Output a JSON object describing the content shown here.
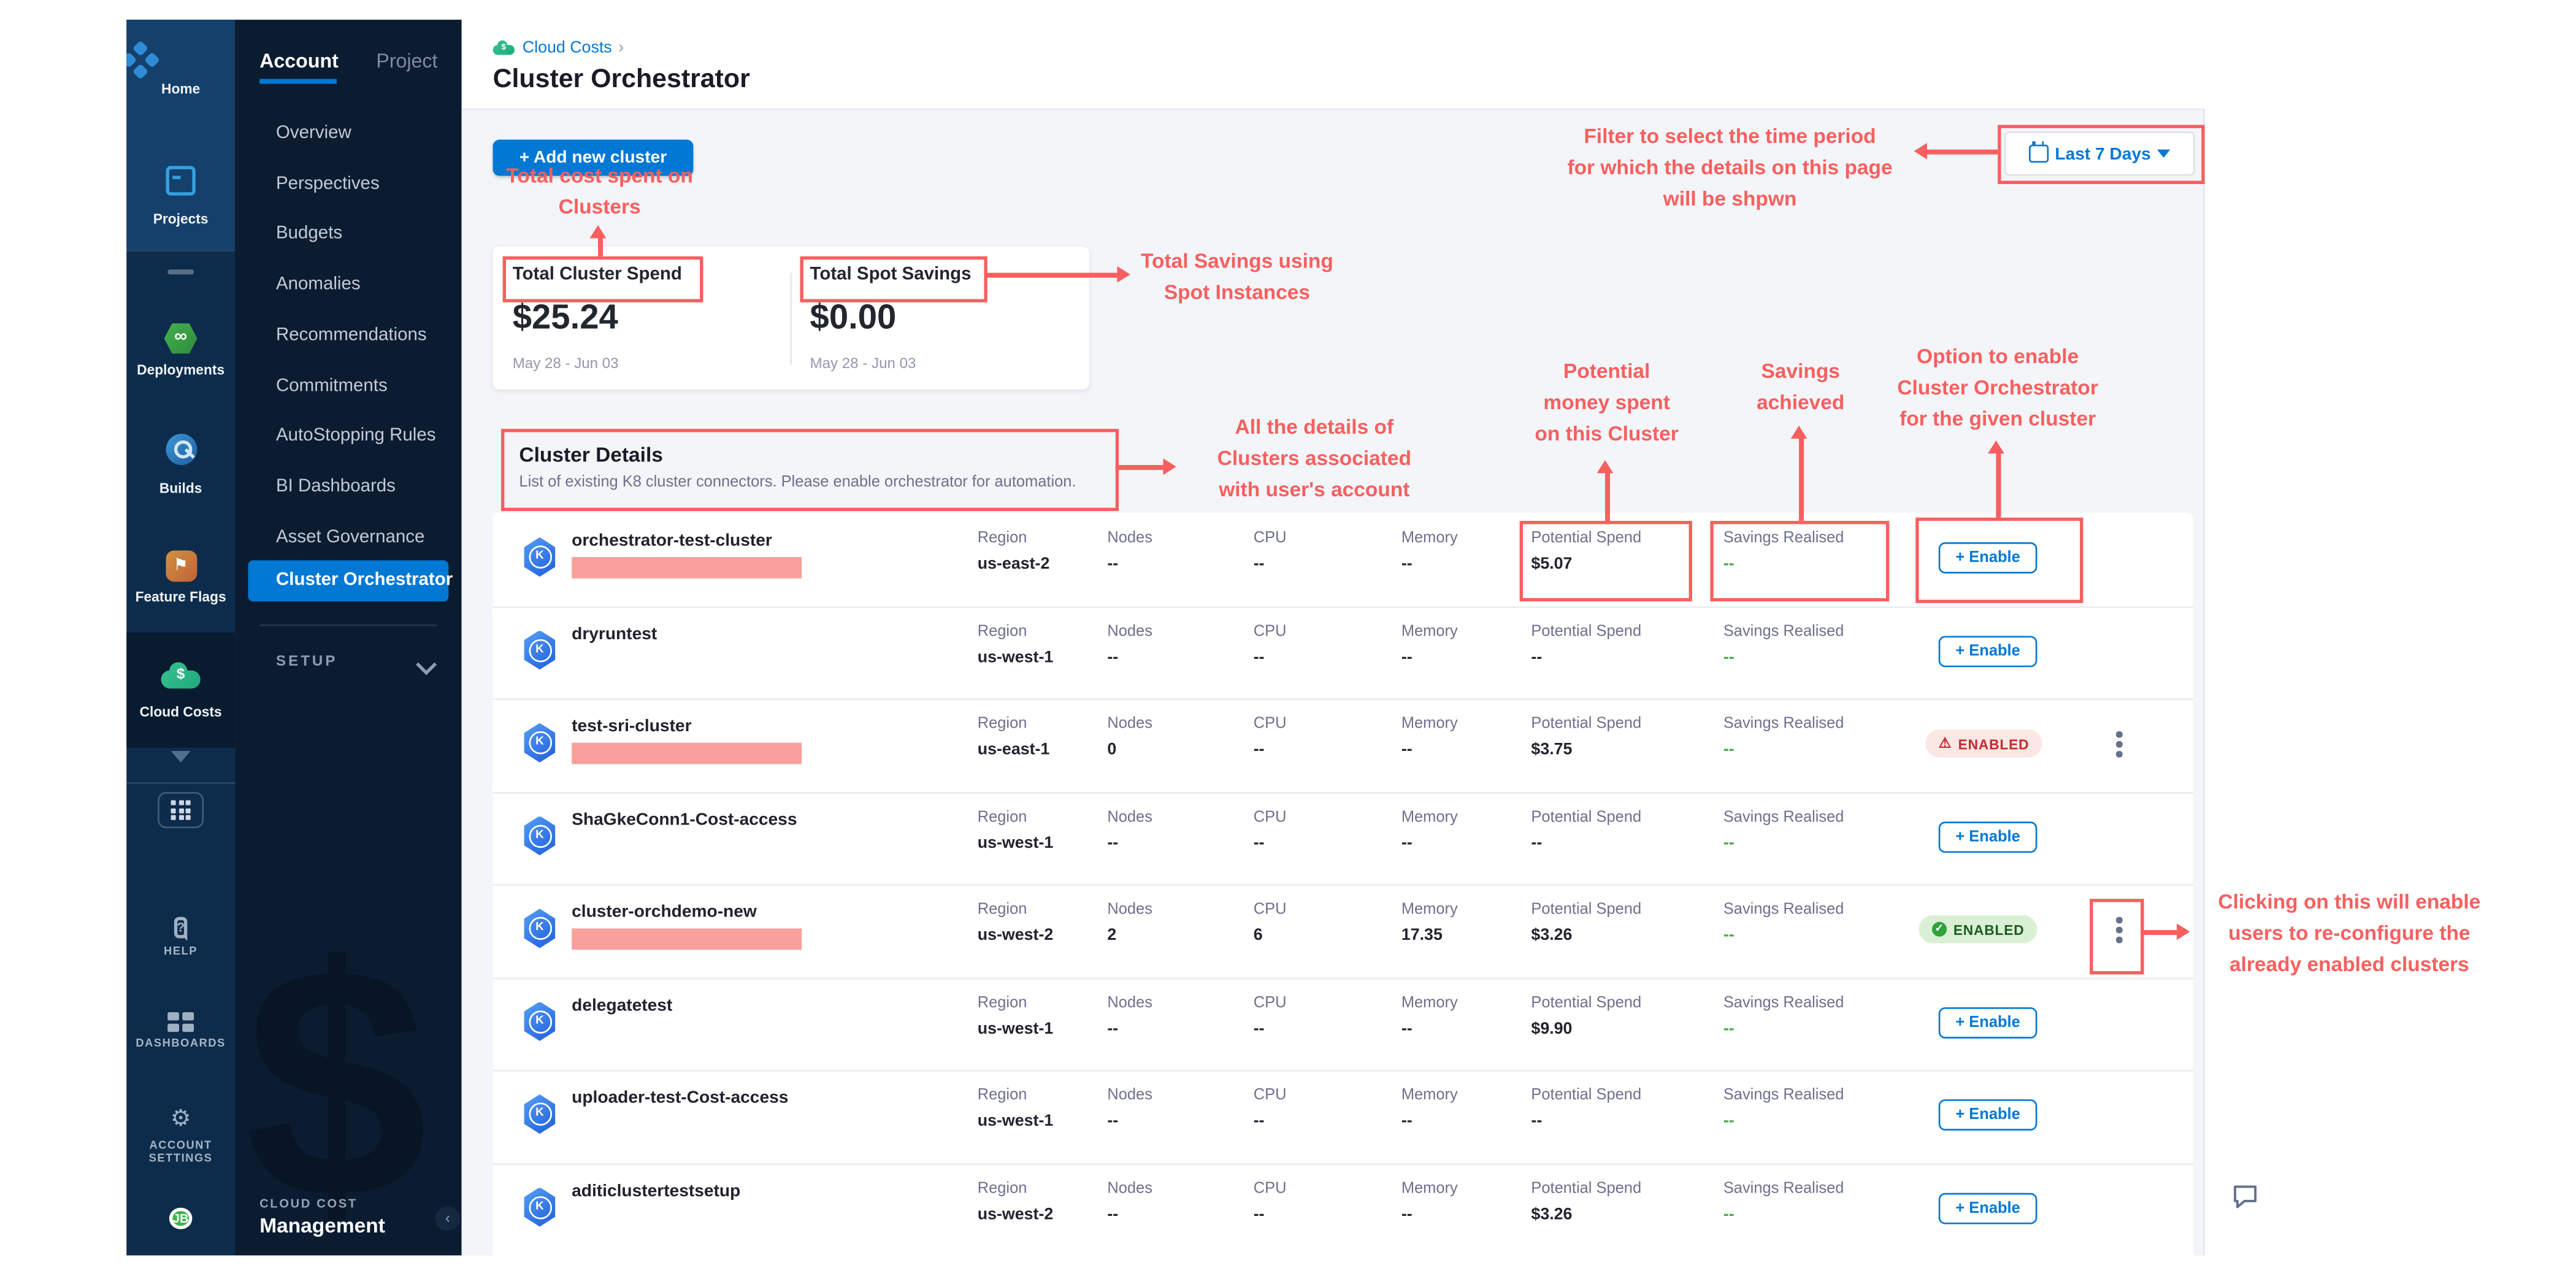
{
  "colors": {
    "accent": "#0278d5",
    "annotation_red": "#f85f5f",
    "redaction_pink": "#f9a09c",
    "savings_green": "#42ab45",
    "badge_red_text": "#c7292f",
    "badge_green_text": "#1d5c20"
  },
  "left_rail": {
    "items": [
      {
        "label": "Home",
        "icon": "home-icon"
      },
      {
        "label": "Projects",
        "icon": "projects-icon"
      },
      {
        "label": "Deployments",
        "icon": "deployments-icon"
      },
      {
        "label": "Builds",
        "icon": "builds-icon"
      },
      {
        "label": "Feature Flags",
        "icon": "feature-flags-icon"
      },
      {
        "label": "Cloud Costs",
        "icon": "cloud-costs-icon"
      }
    ],
    "utility": [
      {
        "label": "HELP",
        "icon": "help-icon"
      },
      {
        "label": "DASHBOARDS",
        "icon": "dashboards-icon"
      },
      {
        "label_line1": "ACCOUNT",
        "label_line2": "SETTINGS",
        "icon": "settings-gear-icon"
      }
    ],
    "avatar": "JB"
  },
  "sidenav": {
    "tabs": {
      "account": "Account",
      "project": "Project"
    },
    "items": [
      "Overview",
      "Perspectives",
      "Budgets",
      "Anomalies",
      "Recommendations",
      "Commitments",
      "AutoStopping Rules",
      "BI Dashboards",
      "Asset Governance"
    ],
    "active_item": "Cluster Orchestrator",
    "setup": "SETUP",
    "footer": {
      "eyebrow": "CLOUD COST",
      "title": "Management"
    }
  },
  "header": {
    "breadcrumb": "Cloud Costs",
    "breadcrumb_sep": "›",
    "title": "Cluster Orchestrator"
  },
  "toolbar": {
    "add_button": "+ Add new cluster",
    "date_filter": "Last 7 Days"
  },
  "summary_cards": [
    {
      "label": "Total Cluster Spend",
      "value": "$25.24",
      "period": "May 28 - Jun 03"
    },
    {
      "label": "Total Spot Savings",
      "value": "$0.00",
      "period": "May 28 - Jun 03"
    }
  ],
  "cluster_details": {
    "title": "Cluster Details",
    "subtitle": "List of existing K8 cluster connectors. Please enable orchestrator for automation."
  },
  "table": {
    "labels": {
      "region": "Region",
      "nodes": "Nodes",
      "cpu": "CPU",
      "memory": "Memory",
      "potential": "Potential Spend",
      "savings": "Savings Realised"
    },
    "enable_label": "+ Enable",
    "enabled_label": "ENABLED",
    "rows": [
      {
        "name": "orchestrator-test-cluster",
        "redacted": true,
        "region": "us-east-2",
        "nodes": "--",
        "cpu": "--",
        "memory": "--",
        "potential": "$5.07",
        "savings": "--",
        "action": "enable"
      },
      {
        "name": "dryruntest",
        "redacted": false,
        "region": "us-west-1",
        "nodes": "--",
        "cpu": "--",
        "memory": "--",
        "potential": "--",
        "savings": "--",
        "action": "enable"
      },
      {
        "name": "test-sri-cluster",
        "redacted": true,
        "region": "us-east-1",
        "nodes": "0",
        "cpu": "--",
        "memory": "--",
        "potential": "$3.75",
        "savings": "--",
        "action": "enabled-error",
        "kebab": true
      },
      {
        "name": "ShaGkeConn1-Cost-access",
        "redacted": false,
        "region": "us-west-1",
        "nodes": "--",
        "cpu": "--",
        "memory": "--",
        "potential": "--",
        "savings": "--",
        "action": "enable"
      },
      {
        "name": "cluster-orchdemo-new",
        "redacted": true,
        "region": "us-west-2",
        "nodes": "2",
        "cpu": "6",
        "memory": "17.35",
        "potential": "$3.26",
        "savings": "--",
        "action": "enabled-ok",
        "kebab": true
      },
      {
        "name": "delegatetest",
        "redacted": false,
        "region": "us-west-1",
        "nodes": "--",
        "cpu": "--",
        "memory": "--",
        "potential": "$9.90",
        "savings": "--",
        "action": "enable"
      },
      {
        "name": "uploader-test-Cost-access",
        "redacted": false,
        "region": "us-west-1",
        "nodes": "--",
        "cpu": "--",
        "memory": "--",
        "potential": "--",
        "savings": "--",
        "action": "enable"
      },
      {
        "name": "aditiclustertestsetup",
        "redacted": false,
        "region": "us-west-2",
        "nodes": "--",
        "cpu": "--",
        "memory": "--",
        "potential": "$3.26",
        "savings": "--",
        "action": "enable"
      }
    ]
  },
  "annotations": {
    "total_cost": [
      "Total cost spent on",
      "Clusters"
    ],
    "spot_savings": [
      "Total Savings using",
      "Spot Instances"
    ],
    "time_filter": [
      "Filter to select the time period",
      "for which the details on this page",
      "will be shpwn"
    ],
    "details": [
      "All the details of",
      "Clusters associated",
      "with user's account"
    ],
    "potential": [
      "Potential",
      "money spent",
      "on this Cluster"
    ],
    "savings": [
      "Savings",
      "achieved"
    ],
    "enable_option": [
      "Option to enable",
      "Cluster Orchestrator",
      "for the given cluster"
    ],
    "reconfigure": [
      "Clicking on this will enable",
      "users to re-configure the",
      "already enabled clusters"
    ]
  }
}
